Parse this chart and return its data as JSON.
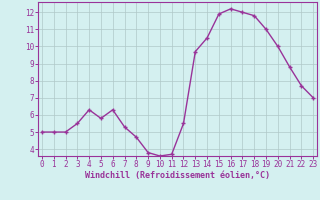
{
  "x": [
    0,
    1,
    2,
    3,
    4,
    5,
    6,
    7,
    8,
    9,
    10,
    11,
    12,
    13,
    14,
    15,
    16,
    17,
    18,
    19,
    20,
    21,
    22,
    23
  ],
  "y": [
    5.0,
    5.0,
    5.0,
    5.5,
    6.3,
    5.8,
    6.3,
    5.3,
    4.7,
    3.8,
    3.6,
    3.7,
    5.5,
    9.7,
    10.5,
    11.9,
    12.2,
    12.0,
    11.8,
    11.0,
    10.0,
    8.8,
    7.7,
    7.0
  ],
  "line_color": "#993399",
  "marker": "+",
  "marker_size": 3.5,
  "marker_linewidth": 1.0,
  "line_width": 1.0,
  "background_color": "#d4f0f0",
  "grid_color": "#b0c8c8",
  "xlabel": "Windchill (Refroidissement éolien,°C)",
  "xlabel_fontsize": 6.0,
  "xlabel_color": "#993399",
  "tick_color": "#993399",
  "tick_fontsize": 5.5,
  "yticks": [
    4,
    5,
    6,
    7,
    8,
    9,
    10,
    11,
    12
  ],
  "xticks": [
    0,
    1,
    2,
    3,
    4,
    5,
    6,
    7,
    8,
    9,
    10,
    11,
    12,
    13,
    14,
    15,
    16,
    17,
    18,
    19,
    20,
    21,
    22,
    23
  ],
  "xlim": [
    -0.3,
    23.3
  ],
  "ylim": [
    3.6,
    12.6
  ],
  "spine_color": "#993399"
}
